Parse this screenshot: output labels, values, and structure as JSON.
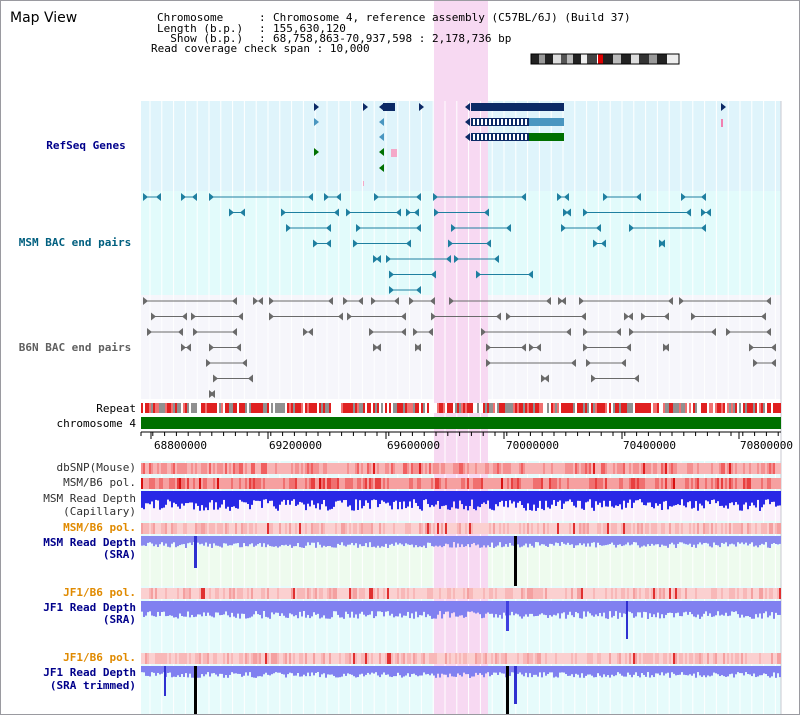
{
  "page": {
    "title": "Map View"
  },
  "header": {
    "rows": [
      {
        "key": "Chromosome",
        "value": "Chromosome 4, reference assembly (C57BL/6J) (Build 37)"
      },
      {
        "key": "Length (b.p.)",
        "value": "155,630,120"
      },
      {
        "key": "  Show (b.p.)",
        "value": "68,758,863-70,937,598 : 2,178,736 bp"
      }
    ],
    "coverage_label": "Read coverage check span",
    "coverage_value": "10,000"
  },
  "tracks": {
    "refseq": "RefSeq Genes",
    "msm_bac": "MSM BAC end pairs",
    "b6n_bac": "B6N BAC end pairs",
    "repeat": "Repeat",
    "chromosome": "chromosome 4",
    "dbsnp": "dbSNP(Mouse)",
    "msm_b6_pol_1": "MSM/B6 pol.",
    "msm_depth_cap_1": "MSM Read Depth",
    "msm_depth_cap_2": "(Capillary)",
    "msm_b6_pol_2": "MSM/B6 pol.",
    "msm_depth_sra_1": "MSM Read Depth",
    "msm_depth_sra_2": "(SRA)",
    "jf1_b6_pol_1": "JF1/B6 pol.",
    "jf1_depth_sra_1": "JF1 Read Depth",
    "jf1_depth_sra_2": "(SRA)",
    "jf1_b6_pol_2": "JF1/B6 pol.",
    "jf1_depth_trim_1": "JF1 Read Depth",
    "jf1_depth_trim_2": "(SRA trimmed)"
  },
  "ruler": {
    "ticks": [
      "68800000",
      "69200000",
      "69600000",
      "70000000",
      "70400000",
      "70800000"
    ]
  },
  "colors": {
    "navy_label": "#00008b",
    "teal_label": "#005f7f",
    "orange_label": "#e08a00",
    "highlight": "#f7d9f2",
    "refseq_bg": "#dff4fb",
    "msm_bg": "#e2fbfb",
    "b6n_bg": "#f6f6fb",
    "gene_navy": "#0c2a66",
    "gene_teal": "#4a96c0",
    "gene_green": "#007000",
    "chromosome_bar": "#007000",
    "depth_blue": "#2828e6"
  }
}
